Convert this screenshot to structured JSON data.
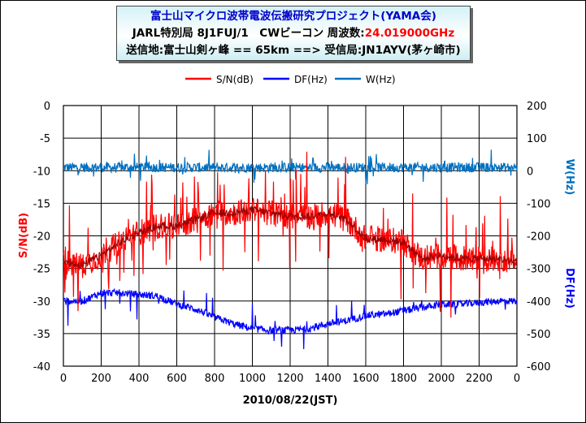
{
  "title": {
    "line1": "富士山マイクロ波帯電波伝搬研究プロジェクト(YAMA会)",
    "line2_prefix": "JARL特別局 8J1FUJ/1　CWビーコン 周波数:",
    "line2_freq": "24.019000GHz",
    "line3": "送信地:富士山剣ヶ峰 == 65km ==> 受信局:JN1AYV(茅ヶ崎市)"
  },
  "colors": {
    "sn": "#ff0000",
    "df": "#0000ff",
    "w": "#0070c0",
    "grid": "#000000"
  },
  "chart_data": {
    "type": "line",
    "xlabel": "2010/08/22(JST)",
    "x_ticks": [
      "0",
      "200",
      "400",
      "600",
      "800",
      "1000",
      "1200",
      "1400",
      "1600",
      "1800",
      "2000",
      "2200",
      "0"
    ],
    "x_range": [
      0,
      2400
    ],
    "y_left": {
      "label": "S/N(dB)",
      "range": [
        -40,
        0
      ],
      "ticks": [
        "0",
        "-5",
        "-10",
        "-15",
        "-20",
        "-25",
        "-30",
        "-35",
        "-40"
      ]
    },
    "y_right": {
      "label_top": "W(Hz)",
      "label_bottom": "DF(Hz)",
      "range": [
        -600,
        200
      ],
      "ticks": [
        "200",
        "100",
        "0",
        "-100",
        "-200",
        "-300",
        "-400",
        "-500",
        "-600"
      ]
    },
    "legend": {
      "placement": "top",
      "entries": [
        "S/N(dB)",
        "DF(Hz)",
        "W(Hz)"
      ]
    },
    "grid": true,
    "series": [
      {
        "name": "S/N(dB)",
        "axis": "left",
        "x": [
          0,
          100,
          200,
          300,
          400,
          500,
          600,
          700,
          800,
          900,
          1000,
          1100,
          1200,
          1300,
          1400,
          1500,
          1600,
          1700,
          1800,
          1900,
          2000,
          2100,
          2200,
          2300,
          2400
        ],
        "values": [
          -24,
          -24.5,
          -23,
          -21,
          -19.5,
          -18.5,
          -18.5,
          -17.5,
          -16.5,
          -16.5,
          -16,
          -16.5,
          -17,
          -17,
          -16.5,
          -17.5,
          -20.5,
          -20.5,
          -21,
          -23.5,
          -23,
          -23.5,
          -23.5,
          -23.5,
          -24
        ]
      },
      {
        "name": "DF(Hz)",
        "axis": "right",
        "x": [
          0,
          100,
          200,
          300,
          400,
          500,
          600,
          700,
          800,
          900,
          1000,
          1100,
          1200,
          1300,
          1400,
          1500,
          1600,
          1700,
          1800,
          1900,
          2000,
          2100,
          2200,
          2300,
          2400
        ],
        "values": [
          -400,
          -400,
          -375,
          -375,
          -380,
          -385,
          -410,
          -425,
          -450,
          -470,
          -485,
          -490,
          -490,
          -485,
          -470,
          -460,
          -445,
          -440,
          -430,
          -420,
          -410,
          -410,
          -405,
          -400,
          -400
        ]
      },
      {
        "name": "W(Hz)",
        "axis": "right",
        "x": [
          0,
          200,
          400,
          600,
          800,
          1000,
          1200,
          1400,
          1600,
          1800,
          2000,
          2200,
          2400
        ],
        "values": [
          10,
          10,
          10,
          10,
          10,
          10,
          10,
          10,
          10,
          10,
          10,
          10,
          10
        ]
      }
    ]
  }
}
